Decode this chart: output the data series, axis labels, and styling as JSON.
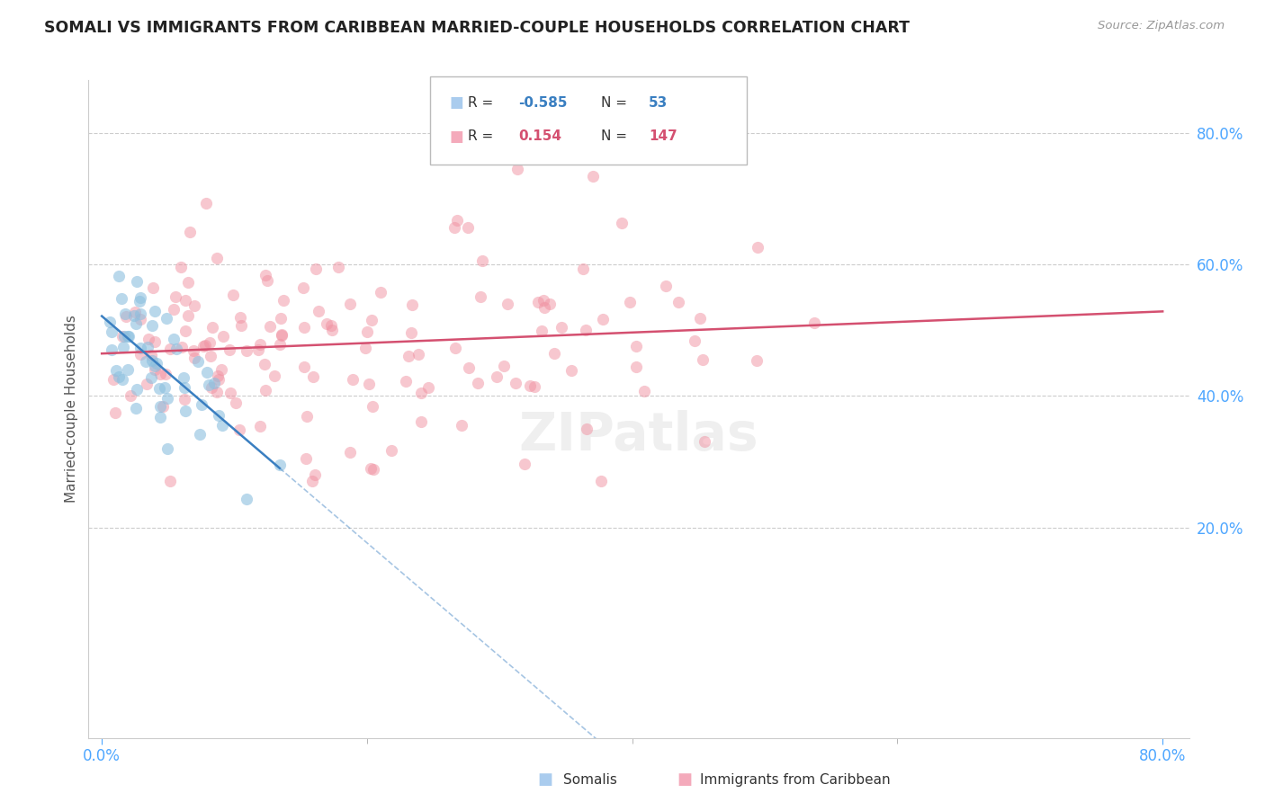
{
  "title": "SOMALI VS IMMIGRANTS FROM CARIBBEAN MARRIED-COUPLE HOUSEHOLDS CORRELATION CHART",
  "source": "Source: ZipAtlas.com",
  "ylabel": "Married-couple Households",
  "somali_color": "#8bbfdf",
  "caribbean_color": "#f090a0",
  "somali_line_color": "#3a7fc1",
  "caribbean_line_color": "#d45070",
  "somali_legend_color": "#aaccee",
  "caribbean_legend_color": "#f4aabb",
  "background_color": "#ffffff",
  "grid_color": "#cccccc",
  "title_color": "#333333",
  "axis_label_color": "#4da6ff",
  "watermark": "ZIPatlas",
  "R_somali": -0.585,
  "N_somali": 53,
  "R_caribbean": 0.154,
  "N_caribbean": 147,
  "xlim": [
    -0.01,
    0.82
  ],
  "ylim": [
    -0.12,
    0.88
  ],
  "seed_somali": 42,
  "seed_caribbean": 99
}
